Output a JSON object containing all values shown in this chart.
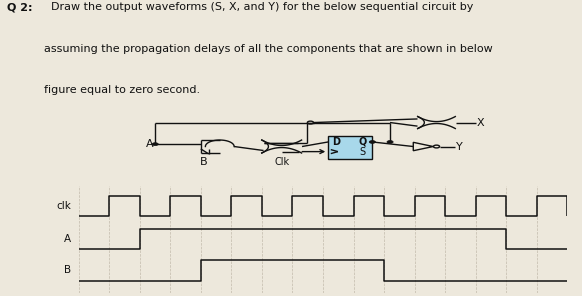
{
  "title_bold": "Q 2:",
  "title_rest": "  Draw the output waveforms (S, X, and Y) for the below sequential circuit by",
  "title_line2": "assuming the propagation delays of all the components that are shown in below",
  "title_line3": "figure equal to zero second.",
  "bg_color": "#ede8dc",
  "signal_color": "#111111",
  "label_color": "#111111",
  "grid_color": "#b0a898",
  "ff_fill": "#a8d8ea",
  "clk_period": 2,
  "clk_half": 1,
  "num_cycles": 8,
  "A_rise": 2,
  "A_fall": 14,
  "B_rise": 4,
  "B_fall": 10,
  "total_time": 16,
  "figsize": [
    5.82,
    2.96
  ],
  "dpi": 100
}
